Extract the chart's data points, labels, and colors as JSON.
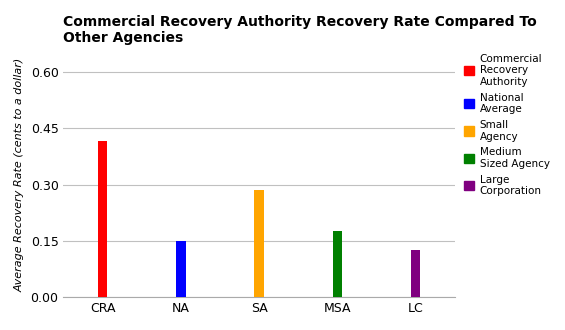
{
  "title": "Commercial Recovery Authority Recovery Rate Compared To\nOther Agencies",
  "ylabel": "Average Recovery Rate (cents to a dollar)",
  "categories": [
    "CRA",
    "NA",
    "SA",
    "MSA",
    "LC"
  ],
  "values": [
    0.415,
    0.15,
    0.285,
    0.175,
    0.125
  ],
  "bar_colors": [
    "#ff0000",
    "#0000ff",
    "#ffa500",
    "#008000",
    "#800080"
  ],
  "ylim": [
    0,
    0.65
  ],
  "yticks": [
    0.0,
    0.15,
    0.3,
    0.45,
    0.6
  ],
  "ytick_labels": [
    "0.00",
    "0.15",
    "0.30",
    "0.45",
    "0.60"
  ],
  "legend_labels": [
    "Commercial\nRecovery\nAuthority",
    "National\nAverage",
    "Small\nAgency",
    "Medium\nSized Agency",
    "Large\nCorporation"
  ],
  "legend_colors": [
    "#ff0000",
    "#0000ff",
    "#ffa500",
    "#008000",
    "#800080"
  ],
  "background_color": "#ffffff",
  "grid_color": "#c0c0c0",
  "title_fontsize": 10,
  "axis_label_fontsize": 8,
  "tick_fontsize": 9,
  "bar_width": 0.12
}
